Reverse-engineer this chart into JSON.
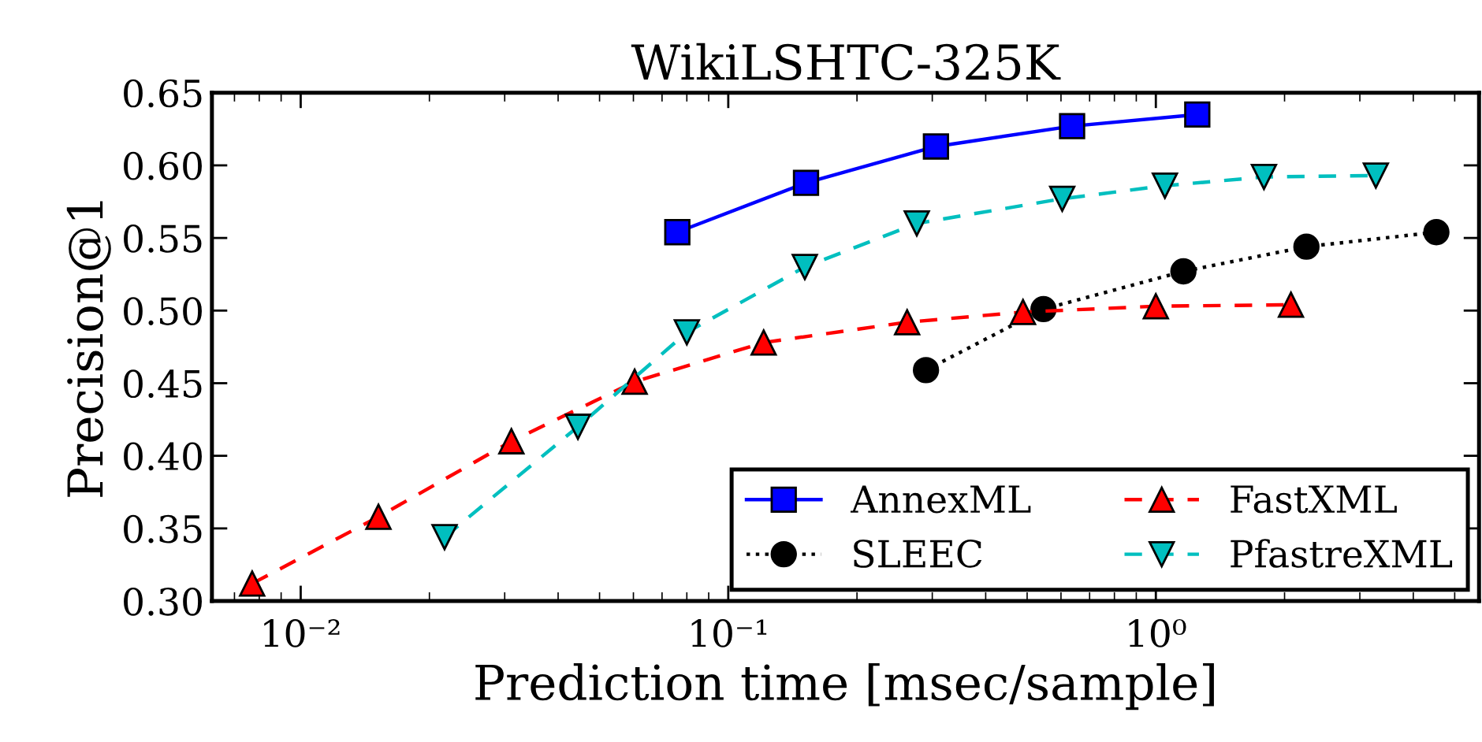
{
  "chart_data": {
    "type": "line",
    "title": "WikiLSHTC-325K",
    "xlabel": "Prediction time [msec/sample]",
    "ylabel": "Precision@1",
    "log": "x",
    "xlim": [
      0.0062,
      5.7
    ],
    "xticks": [
      {
        "value": 0.01,
        "label": "10⁻²"
      },
      {
        "value": 0.1,
        "label": "10⁻¹"
      },
      {
        "value": 1,
        "label": "10⁰"
      }
    ],
    "ylim": [
      0.3,
      0.65
    ],
    "yticks": [
      {
        "value": 0.3,
        "label": "0.30"
      },
      {
        "value": 0.35,
        "label": "0.35"
      },
      {
        "value": 0.4,
        "label": "0.40"
      },
      {
        "value": 0.45,
        "label": "0.45"
      },
      {
        "value": 0.5,
        "label": "0.50"
      },
      {
        "value": 0.55,
        "label": "0.55"
      },
      {
        "value": 0.6,
        "label": "0.60"
      },
      {
        "value": 0.65,
        "label": "0.65"
      }
    ],
    "legend": "bottom right",
    "grid": false,
    "series": [
      {
        "name": "AnnexML",
        "color": "#0000ff",
        "marker": "square",
        "line_style": "solid",
        "x": [
          0.076,
          0.152,
          0.306,
          0.637,
          1.25
        ],
        "values": [
          0.554,
          0.588,
          0.613,
          0.627,
          0.635
        ]
      },
      {
        "name": "SLEEC",
        "color": "#000000",
        "marker": "circle",
        "line_style": "dotted",
        "x": [
          0.29,
          0.546,
          1.16,
          2.25,
          4.53
        ],
        "values": [
          0.459,
          0.501,
          0.527,
          0.544,
          0.554
        ]
      },
      {
        "name": "FastXML",
        "color": "#ff0000",
        "marker": "triangle",
        "line_style": "dashed",
        "x": [
          0.0077,
          0.0152,
          0.0311,
          0.0604,
          0.121,
          0.262,
          0.489,
          1.0,
          2.07
        ],
        "values": [
          0.312,
          0.358,
          0.41,
          0.451,
          0.478,
          0.492,
          0.499,
          0.503,
          0.504
        ]
      },
      {
        "name": "PfastreXML",
        "color": "#00bfbf",
        "marker": "triangle_down",
        "line_style": "dashed",
        "x": [
          0.0217,
          0.0445,
          0.08,
          0.151,
          0.276,
          0.604,
          1.05,
          1.79,
          3.27
        ],
        "values": [
          0.344,
          0.42,
          0.485,
          0.53,
          0.56,
          0.577,
          0.586,
          0.592,
          0.593
        ]
      }
    ]
  }
}
